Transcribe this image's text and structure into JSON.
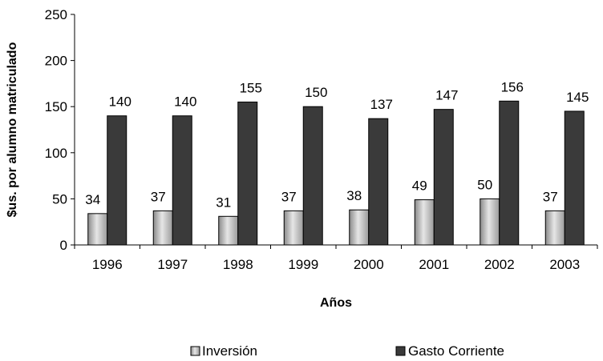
{
  "chart_data": {
    "type": "bar",
    "categories": [
      "1996",
      "1997",
      "1998",
      "1999",
      "2000",
      "2001",
      "2002",
      "2003"
    ],
    "series": [
      {
        "name": "Inversión",
        "values": [
          34,
          37,
          31,
          37,
          38,
          49,
          50,
          37
        ],
        "color": "#c8c8c8"
      },
      {
        "name": "Gasto Corriente",
        "values": [
          140,
          140,
          155,
          150,
          137,
          147,
          156,
          145
        ],
        "color": "#3a3a3a"
      }
    ],
    "title": "",
    "xlabel": "Años",
    "ylabel": "$us. por alumno matriculado",
    "ylim": [
      0,
      250
    ],
    "yticks": [
      0,
      50,
      100,
      150,
      200,
      250
    ],
    "grid": false,
    "legend_position": "bottom"
  }
}
